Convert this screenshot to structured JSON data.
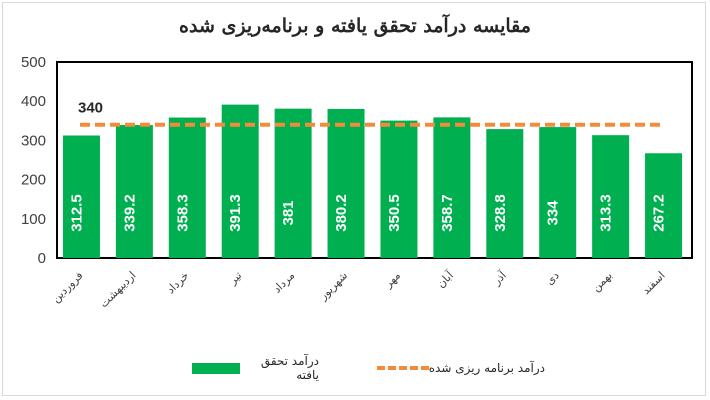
{
  "chart_data": {
    "type": "bar",
    "title": "مقایسه درآمد تحقق یافته و برنامه‌ریزی شده",
    "categories": [
      "فروردین",
      "اردیبهشت",
      "خرداد",
      "تیر",
      "مرداد",
      "شهریور",
      "مهر",
      "آبان",
      "آذر",
      "دی",
      "بهمن",
      "اسفند"
    ],
    "series": [
      {
        "name": "درآمد تحقق یافته",
        "type": "bar",
        "color": "#00b050",
        "values": [
          312.5,
          339.2,
          358.3,
          391.3,
          381,
          380.2,
          350.5,
          358.7,
          328.8,
          334,
          313.3,
          267.2
        ]
      },
      {
        "name": "درآمد برنامه ریزی شده",
        "type": "line",
        "style": "dashed",
        "color": "#f58a3c",
        "value": 340,
        "label": "340"
      }
    ],
    "ylim": [
      0,
      500
    ],
    "yticks": [
      0,
      100,
      200,
      300,
      400,
      500
    ],
    "grid": false,
    "legend": "bottom"
  }
}
